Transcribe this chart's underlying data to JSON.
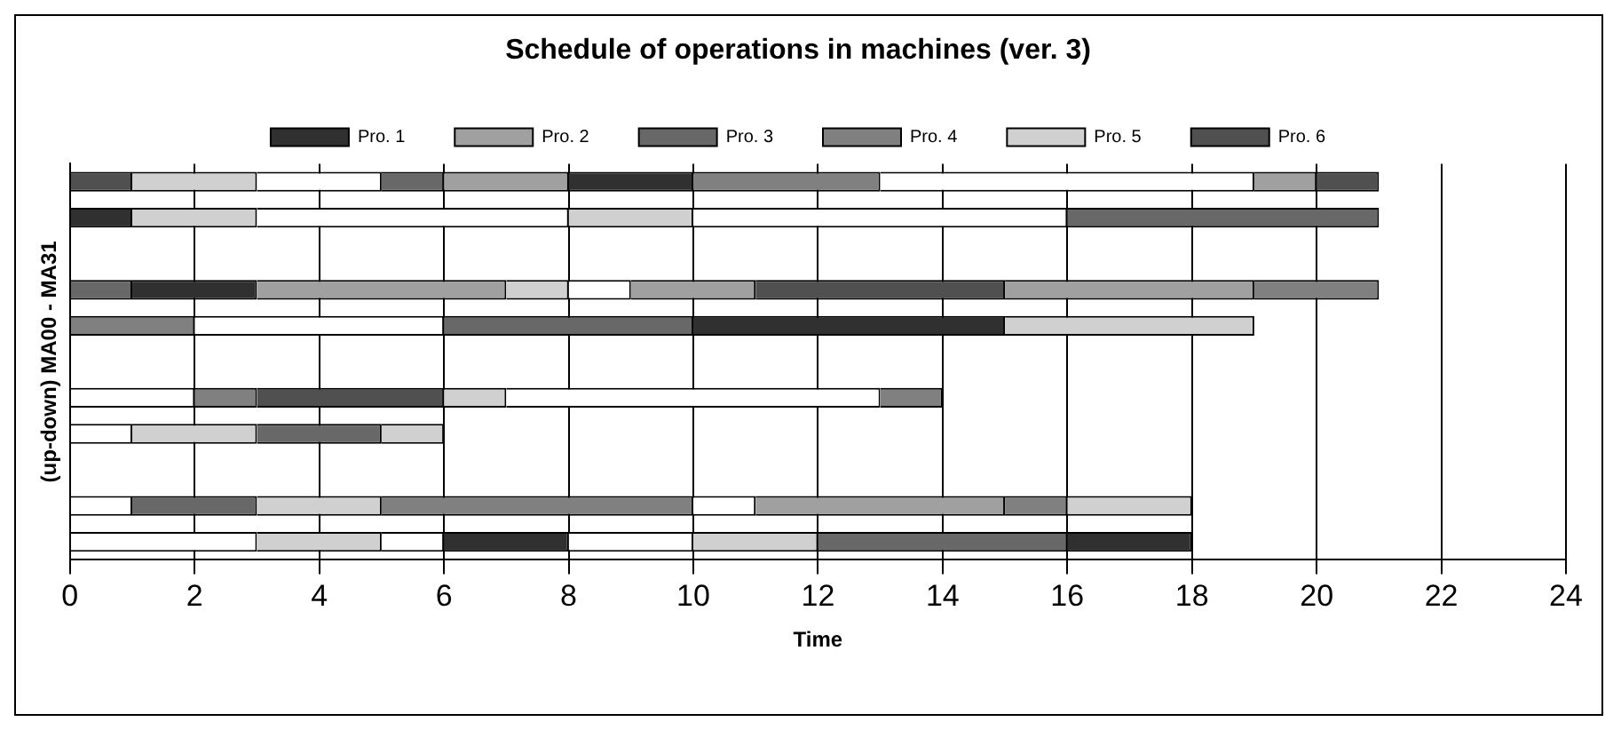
{
  "chart_data": {
    "type": "bar",
    "title": "Schedule of operations in machines (ver. 3)",
    "xlabel": "Time",
    "ylabel": "(up-down) MA00 - MA31",
    "orientation": "horizontal",
    "categories": [
      null,
      null,
      null,
      null,
      null,
      null,
      null,
      null,
      null,
      null,
      null
    ],
    "xlim": [
      0,
      24
    ],
    "xticks": [
      0,
      2,
      4,
      6,
      8,
      10,
      12,
      14,
      16,
      18,
      20,
      22,
      24
    ],
    "grid": "x",
    "legend": "top",
    "tick_labels": "x",
    "series": [
      {
        "name": "Pro. 1",
        "color": "#303030",
        "base": [
          8,
          0,
          null,
          1,
          10,
          null,
          null,
          null,
          null,
          null,
          6
        ],
        "values": [
          2,
          1,
          null,
          2,
          5,
          null,
          null,
          null,
          null,
          null,
          2
        ]
      },
      {
        "name": "Pro. 2",
        "color": "#a0a0a0",
        "base": [
          6,
          null,
          null,
          3,
          null,
          null,
          null,
          null,
          null,
          11,
          null
        ],
        "values": [
          2,
          null,
          null,
          4,
          null,
          null,
          null,
          null,
          null,
          4,
          null
        ]
      },
      {
        "name": "Pro. 3",
        "color": "#686868",
        "base": [
          5,
          16,
          null,
          0,
          6,
          null,
          null,
          3,
          null,
          1,
          12
        ],
        "values": [
          1,
          5,
          null,
          1,
          4,
          null,
          null,
          2,
          null,
          2,
          4
        ]
      },
      {
        "name": "Pro. 4",
        "color": "#808080",
        "base": [
          10,
          null,
          null,
          19,
          0,
          null,
          2,
          null,
          null,
          5,
          null
        ],
        "values": [
          3,
          null,
          null,
          2,
          2,
          null,
          1,
          null,
          null,
          5,
          null
        ]
      },
      {
        "name": "Pro. 5",
        "color": "#d0d0d0",
        "base": [
          1,
          1,
          null,
          7,
          15,
          null,
          6,
          1,
          null,
          3,
          3
        ],
        "values": [
          2,
          2,
          null,
          1,
          4,
          null,
          1,
          2,
          null,
          2,
          2
        ]
      },
      {
        "name": "Pro. 6",
        "color": "#505050",
        "base": [
          0,
          null,
          null,
          11,
          null,
          null,
          3,
          null,
          null,
          null,
          null
        ],
        "values": [
          1,
          null,
          null,
          4,
          null,
          null,
          3,
          null,
          null,
          null,
          null
        ]
      },
      {
        "color": "#303030",
        "base": [
          null,
          null,
          null,
          null,
          null,
          null,
          null,
          null,
          null,
          null,
          16
        ],
        "values": [
          null,
          null,
          null,
          null,
          null,
          null,
          null,
          null,
          null,
          null,
          2
        ]
      },
      {
        "color": "#a0a0a0",
        "base": [
          19,
          null,
          null,
          9,
          null,
          null,
          null,
          null,
          null,
          null,
          null
        ],
        "values": [
          1,
          null,
          null,
          2,
          null,
          null,
          null,
          null,
          null,
          null,
          null
        ]
      },
      {
        "color": "#a0a0a0",
        "base": [
          null,
          null,
          null,
          15,
          null,
          null,
          null,
          null,
          null,
          null,
          null
        ],
        "values": [
          null,
          null,
          null,
          4,
          null,
          null,
          null,
          null,
          null,
          null,
          null
        ]
      },
      {
        "color": "#808080",
        "base": [
          null,
          null,
          null,
          null,
          null,
          null,
          13,
          null,
          null,
          15,
          null
        ],
        "values": [
          null,
          null,
          null,
          null,
          null,
          null,
          1,
          null,
          null,
          1,
          null
        ]
      },
      {
        "color": "#d0d0d0",
        "base": [
          null,
          8,
          null,
          null,
          null,
          null,
          null,
          5,
          null,
          16,
          10
        ],
        "values": [
          null,
          2,
          null,
          null,
          null,
          null,
          null,
          1,
          null,
          2,
          2
        ]
      },
      {
        "color": "#505050",
        "base": [
          20,
          null,
          null,
          null,
          null,
          null,
          null,
          null,
          null,
          null,
          null
        ],
        "values": [
          1,
          null,
          null,
          null,
          null,
          null,
          null,
          null,
          null,
          null,
          null
        ]
      },
      {
        "color": "#ffffff",
        "base": [
          3,
          3,
          null,
          8,
          2,
          null,
          0,
          0,
          null,
          0,
          0
        ],
        "values": [
          2,
          5,
          null,
          1,
          4,
          null,
          2,
          1,
          null,
          1,
          3
        ]
      },
      {
        "color": "#ffffff",
        "base": [
          13,
          10,
          null,
          null,
          null,
          null,
          7,
          null,
          null,
          10,
          5
        ],
        "values": [
          6,
          6,
          null,
          null,
          null,
          null,
          6,
          null,
          null,
          1,
          1
        ]
      },
      {
        "color": "#ffffff",
        "base": [
          null,
          null,
          null,
          null,
          null,
          null,
          null,
          null,
          null,
          null,
          8
        ],
        "values": [
          null,
          null,
          null,
          null,
          null,
          null,
          null,
          null,
          null,
          null,
          2
        ]
      }
    ]
  }
}
